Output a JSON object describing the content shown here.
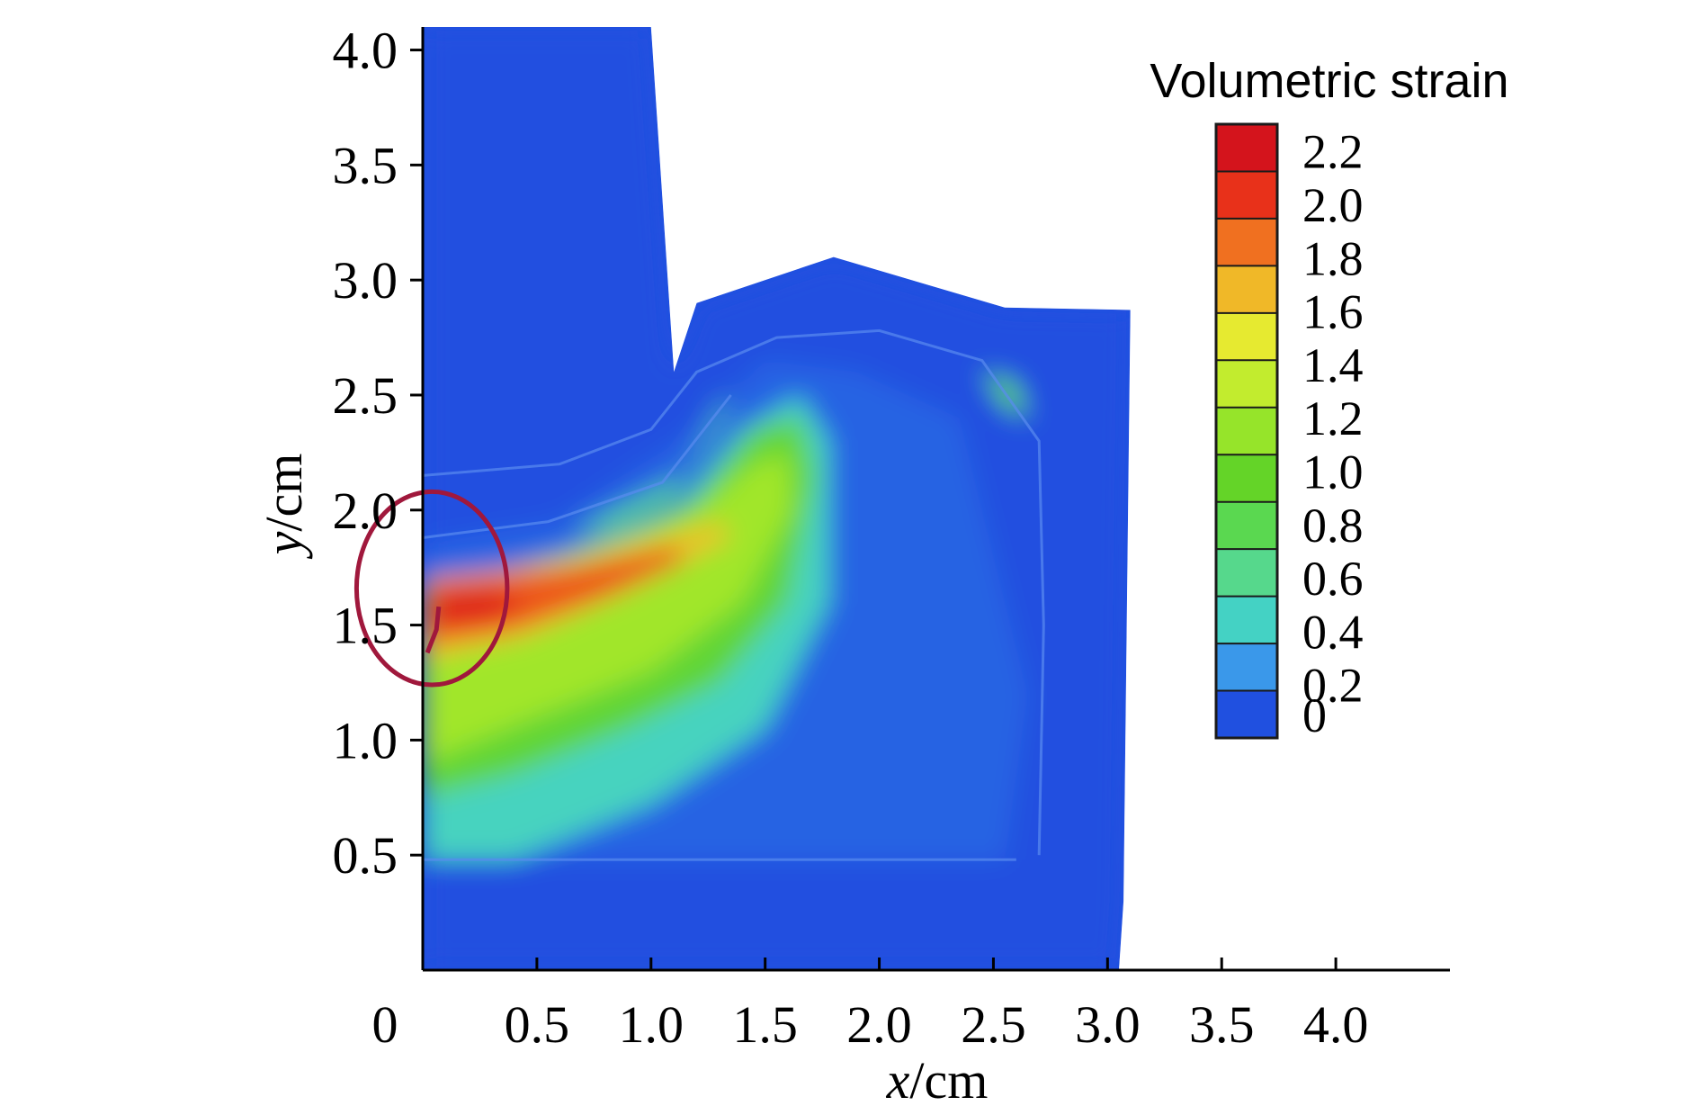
{
  "chart_data": {
    "type": "heatmap",
    "title": "",
    "xlabel": {
      "var": "x",
      "unit": "/cm"
    },
    "ylabel": {
      "var": "y",
      "unit": "/cm"
    },
    "xlim": [
      0,
      4.5
    ],
    "ylim": [
      0,
      4.1
    ],
    "x_ticks": [
      0.5,
      1.0,
      1.5,
      2.0,
      2.5,
      3.0,
      3.5,
      4.0
    ],
    "x_tick_labels": [
      "0.5",
      "1.0",
      "1.5",
      "2.0",
      "2.5",
      "3.0",
      "3.5",
      "4.0"
    ],
    "y_ticks": [
      0.5,
      1.0,
      1.5,
      2.0,
      2.5,
      3.0,
      3.5,
      4.0
    ],
    "y_tick_labels": [
      "0.5",
      "1.0",
      "1.5",
      "2.0",
      "2.5",
      "3.0",
      "3.5",
      "4.0"
    ],
    "origin_label": "0",
    "grid": false,
    "colorbar": {
      "title": "Volumetric strain",
      "placement": "top-right",
      "range": [
        0,
        2.3
      ],
      "ticks": [
        2.2,
        2.0,
        1.8,
        1.6,
        1.4,
        1.2,
        1.0,
        0.8,
        0.6,
        0.4,
        0.2,
        0
      ],
      "tick_labels": [
        "2.2",
        "2.0",
        "1.8",
        "1.6",
        "1.4",
        "1.2",
        "1.0",
        "0.8",
        "0.6",
        "0.4",
        "0.2",
        "0"
      ],
      "colors": [
        "#d4141c",
        "#e8311a",
        "#f07020",
        "#f0b828",
        "#e6ea30",
        "#c2ec2e",
        "#96e42a",
        "#64d428",
        "#5ad850",
        "#56d88c",
        "#44d2c4",
        "#3a98ea",
        "#2050e0"
      ]
    },
    "domain_outline": [
      [
        0,
        0
      ],
      [
        0,
        4.1
      ],
      [
        1.0,
        4.1
      ],
      [
        1.1,
        2.6
      ],
      [
        1.2,
        2.9
      ],
      [
        1.8,
        3.1
      ],
      [
        2.55,
        2.88
      ],
      [
        3.1,
        2.87
      ],
      [
        3.07,
        0.3
      ],
      [
        3.05,
        0
      ]
    ],
    "regions": [
      {
        "level": 0.0,
        "polygon": [
          [
            0,
            0
          ],
          [
            0,
            4.1
          ],
          [
            1.0,
            4.1
          ],
          [
            1.1,
            2.6
          ],
          [
            1.2,
            2.9
          ],
          [
            1.8,
            3.1
          ],
          [
            2.55,
            2.88
          ],
          [
            3.1,
            2.87
          ],
          [
            3.07,
            0.3
          ],
          [
            3.05,
            0
          ]
        ]
      },
      {
        "level": 0.05,
        "polygon": [
          [
            0,
            0.48
          ],
          [
            0,
            1.85
          ],
          [
            0.6,
            1.95
          ],
          [
            1.2,
            2.35
          ],
          [
            1.5,
            2.65
          ],
          [
            1.9,
            2.6
          ],
          [
            2.35,
            2.4
          ],
          [
            2.65,
            1.2
          ],
          [
            2.55,
            0.48
          ]
        ]
      },
      {
        "level": 0.4,
        "polygon": [
          [
            0,
            0.48
          ],
          [
            0,
            1.3
          ],
          [
            0.4,
            1.5
          ],
          [
            1.0,
            1.85
          ],
          [
            1.4,
            2.35
          ],
          [
            1.65,
            2.5
          ],
          [
            1.78,
            2.3
          ],
          [
            1.78,
            1.6
          ],
          [
            1.5,
            1.05
          ],
          [
            1.0,
            0.72
          ],
          [
            0.7,
            0.6
          ],
          [
            0.4,
            0.48
          ]
        ]
      },
      {
        "level": 0.9,
        "polygon": [
          [
            0,
            0.75
          ],
          [
            0,
            1.55
          ],
          [
            0.6,
            1.75
          ],
          [
            1.2,
            2.05
          ],
          [
            1.45,
            2.35
          ],
          [
            1.65,
            2.4
          ],
          [
            1.72,
            2.15
          ],
          [
            1.6,
            1.6
          ],
          [
            1.3,
            1.25
          ],
          [
            0.9,
            1.05
          ],
          [
            0.4,
            0.85
          ]
        ]
      },
      {
        "level": 1.2,
        "polygon": [
          [
            0,
            0.9
          ],
          [
            0,
            1.65
          ],
          [
            0.6,
            1.8
          ],
          [
            1.2,
            2.0
          ],
          [
            1.45,
            2.2
          ],
          [
            1.6,
            2.25
          ],
          [
            1.62,
            2.0
          ],
          [
            1.4,
            1.6
          ],
          [
            1.0,
            1.3
          ],
          [
            0.5,
            1.1
          ]
        ]
      },
      {
        "level": 1.7,
        "polygon": [
          [
            0,
            1.35
          ],
          [
            0,
            1.7
          ],
          [
            0.7,
            1.78
          ],
          [
            1.3,
            1.95
          ],
          [
            1.35,
            1.88
          ],
          [
            0.9,
            1.65
          ],
          [
            0.45,
            1.45
          ]
        ]
      },
      {
        "level": 2.0,
        "polygon": [
          [
            0.02,
            1.42
          ],
          [
            0.02,
            1.68
          ],
          [
            0.6,
            1.74
          ],
          [
            1.1,
            1.84
          ],
          [
            1.15,
            1.78
          ],
          [
            0.8,
            1.62
          ],
          [
            0.4,
            1.48
          ]
        ]
      },
      {
        "level": 2.2,
        "polygon": [
          [
            0.02,
            1.5
          ],
          [
            0.02,
            1.64
          ],
          [
            0.3,
            1.66
          ],
          [
            0.45,
            1.6
          ],
          [
            0.3,
            1.52
          ]
        ]
      },
      {
        "level": 0.6,
        "polygon": [
          [
            0.65,
            1.9
          ],
          [
            1.15,
            2.15
          ],
          [
            1.3,
            2.45
          ],
          [
            1.35,
            2.5
          ],
          [
            1.28,
            2.35
          ],
          [
            1.1,
            2.05
          ],
          [
            0.85,
            1.92
          ]
        ]
      },
      {
        "level": 0.8,
        "polygon": [
          [
            2.45,
            2.6
          ],
          [
            2.6,
            2.55
          ],
          [
            2.65,
            2.4
          ],
          [
            2.55,
            2.45
          ]
        ]
      }
    ],
    "interfaces": [
      [
        [
          0,
          2.15
        ],
        [
          0.6,
          2.2
        ],
        [
          1.0,
          2.35
        ],
        [
          1.2,
          2.6
        ],
        [
          1.55,
          2.75
        ],
        [
          2.0,
          2.78
        ],
        [
          2.45,
          2.65
        ],
        [
          2.7,
          2.3
        ],
        [
          2.72,
          1.5
        ],
        [
          2.7,
          0.5
        ]
      ],
      [
        [
          0,
          1.88
        ],
        [
          0.55,
          1.95
        ],
        [
          1.05,
          2.12
        ],
        [
          1.35,
          2.5
        ]
      ],
      [
        [
          0,
          0.48
        ],
        [
          2.6,
          0.48
        ]
      ]
    ],
    "annotations": [
      {
        "type": "ellipse",
        "center": [
          0.04,
          1.66
        ],
        "rx": 0.33,
        "ry": 0.42,
        "color": "#a0183c"
      },
      {
        "type": "curve",
        "points": [
          [
            0.07,
            1.58
          ],
          [
            0.06,
            1.48
          ],
          [
            0.02,
            1.38
          ]
        ],
        "color": "#a0183c"
      }
    ]
  }
}
